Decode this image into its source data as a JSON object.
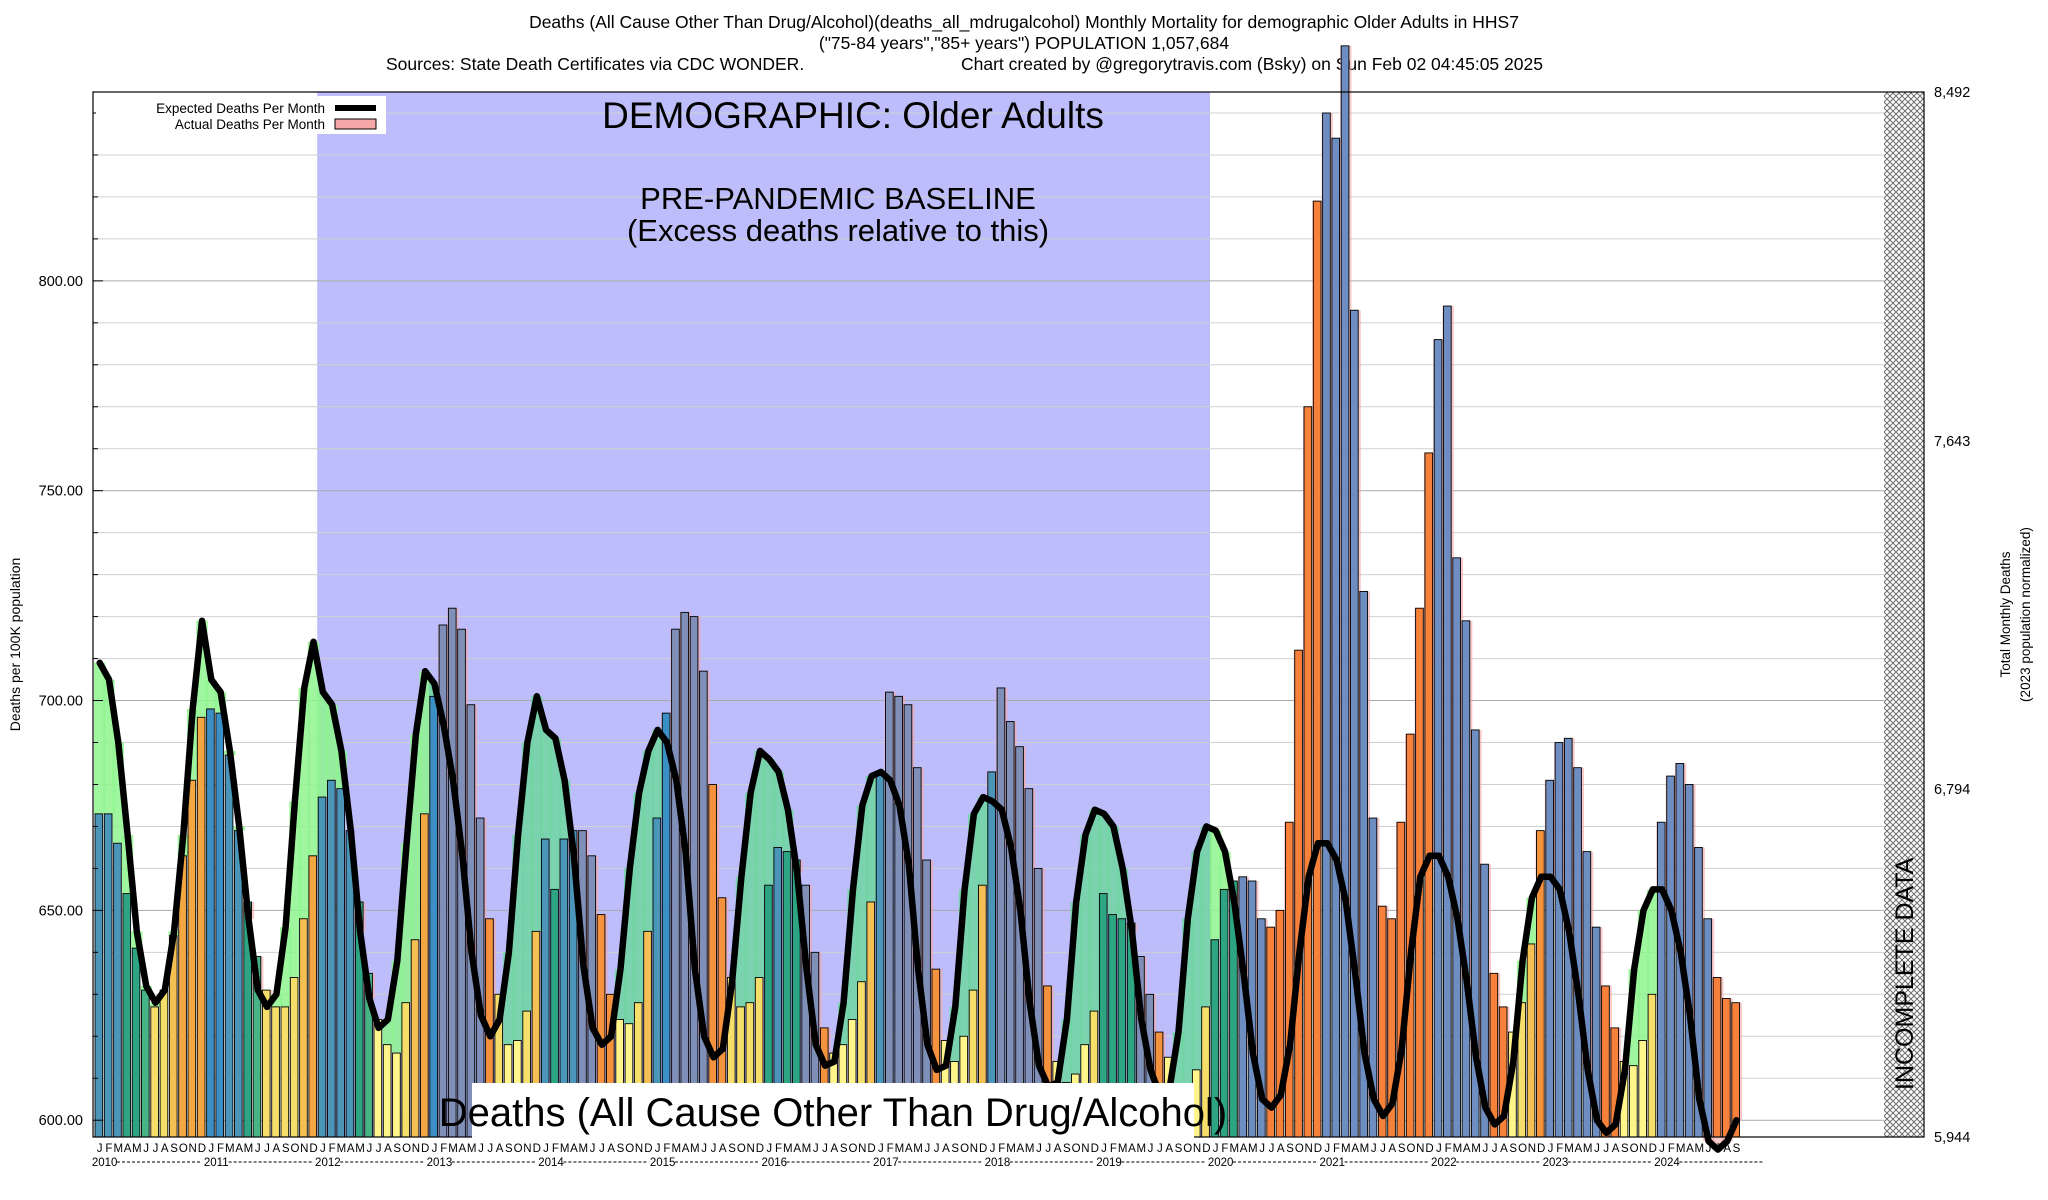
{
  "header": {
    "line1": "Deaths (All Cause Other Than Drug/Alcohol)(deaths_all_mdrugalcohol) Monthly Mortality for demographic Older Adults in HHS7",
    "line2": "(\"75-84 years\",\"85+ years\") POPULATION 1,057,684",
    "sources": "Sources: State Death Certificates via CDC WONDER.",
    "credit": "Chart created by @gregorytravis.com (Bsky) on Sun Feb 02 04:45:05 2025"
  },
  "chart_data": {
    "type": "bar",
    "title": "DEMOGRAPHIC: Older Adults",
    "big_label": "Deaths (All Cause Other Than Drug/Alcohol)",
    "ylabel": "Deaths per 100K population",
    "y2label_line1": "Total Monthly Deaths",
    "y2label_line2": "(2023 population normalized)",
    "ylim": [
      596,
      845
    ],
    "yticks": [
      "600.00",
      "650.00",
      "700.00",
      "750.00",
      "800.00"
    ],
    "y2ticks": [
      "5,944",
      "6,794",
      "7,643",
      "8,492"
    ],
    "legend": {
      "expected": "Expected Deaths Per Month",
      "actual": "Actual Deaths Per Month",
      "placement": "top-left"
    },
    "baseline_annotation_line1": "PRE-PANDEMIC BASELINE",
    "baseline_annotation_line2": "(Excess deaths relative to this)",
    "baseline_period": [
      "2012-01",
      "2019-12"
    ],
    "incomplete_label": "INCOMPLETE DATA",
    "month_letters": [
      "J",
      "F",
      "M",
      "A",
      "M",
      "J",
      "J",
      "A",
      "S",
      "O",
      "N",
      "D"
    ],
    "years": [
      "2010",
      "2011",
      "2012",
      "2013",
      "2014",
      "2015",
      "2016",
      "2017",
      "2018",
      "2019",
      "2020",
      "2021",
      "2022",
      "2023",
      "2024"
    ],
    "x_start": "2010-01",
    "actual_monthly": [
      673,
      673,
      666,
      654,
      641,
      631,
      627,
      631,
      644,
      663,
      681,
      696,
      698,
      697,
      687,
      669,
      652,
      639,
      631,
      627,
      627,
      634,
      648,
      663,
      677,
      681,
      679,
      669,
      652,
      635,
      624,
      618,
      616,
      628,
      643,
      673,
      701,
      718,
      722,
      717,
      699,
      672,
      648,
      630,
      618,
      619,
      626,
      645,
      667,
      655,
      667,
      669,
      669,
      663,
      649,
      630,
      624,
      623,
      628,
      645,
      672,
      697,
      717,
      721,
      720,
      707,
      680,
      653,
      634,
      627,
      628,
      634,
      656,
      665,
      664,
      662,
      656,
      640,
      622,
      616,
      618,
      624,
      633,
      652,
      683,
      702,
      701,
      699,
      684,
      662,
      636,
      619,
      614,
      620,
      631,
      656,
      683,
      703,
      695,
      689,
      679,
      660,
      632,
      614,
      609,
      611,
      618,
      626,
      654,
      649,
      648,
      647,
      639,
      630,
      621,
      615,
      608,
      604,
      612,
      627,
      643,
      655,
      657,
      658,
      657,
      648,
      646,
      650,
      671,
      712,
      770,
      819,
      840,
      834,
      856,
      793,
      726,
      672,
      651,
      648,
      671,
      692,
      722,
      759,
      786,
      794,
      734,
      719,
      693,
      661,
      635,
      627,
      621,
      628,
      642,
      669,
      681,
      690,
      691,
      684,
      664,
      646,
      632,
      622,
      614,
      613,
      619,
      630,
      671,
      682,
      685,
      680,
      665,
      648,
      634,
      629,
      628
    ],
    "expected_monthly": [
      709,
      705,
      690,
      668,
      645,
      632,
      628,
      631,
      645,
      668,
      698,
      719,
      705,
      702,
      688,
      670,
      648,
      631,
      627,
      630,
      646,
      676,
      703,
      714,
      702,
      699,
      688,
      669,
      645,
      629,
      622,
      624,
      638,
      666,
      692,
      707,
      704,
      694,
      681,
      663,
      640,
      625,
      620,
      624,
      640,
      668,
      690,
      701,
      693,
      691,
      681,
      663,
      637,
      622,
      618,
      620,
      636,
      660,
      678,
      688,
      693,
      690,
      681,
      664,
      636,
      620,
      615,
      617,
      633,
      658,
      678,
      688,
      686,
      683,
      674,
      659,
      636,
      618,
      613,
      614,
      628,
      655,
      675,
      682,
      683,
      681,
      675,
      661,
      636,
      618,
      612,
      613,
      627,
      655,
      673,
      677,
      676,
      674,
      665,
      650,
      628,
      613,
      608,
      609,
      624,
      652,
      668,
      674,
      673,
      670,
      660,
      645,
      624,
      612,
      606,
      607,
      621,
      648,
      664,
      670,
      669,
      664,
      652,
      635,
      616,
      605,
      603,
      606,
      618,
      640,
      658,
      666,
      666,
      662,
      652,
      635,
      616,
      605,
      601,
      604,
      617,
      640,
      658,
      663,
      663,
      658,
      648,
      633,
      615,
      603,
      599,
      601,
      614,
      638,
      653,
      658,
      658,
      655,
      645,
      630,
      612,
      600,
      597,
      599,
      612,
      636,
      650,
      655,
      655,
      650,
      640,
      625,
      605,
      595,
      593,
      595,
      600
    ]
  }
}
